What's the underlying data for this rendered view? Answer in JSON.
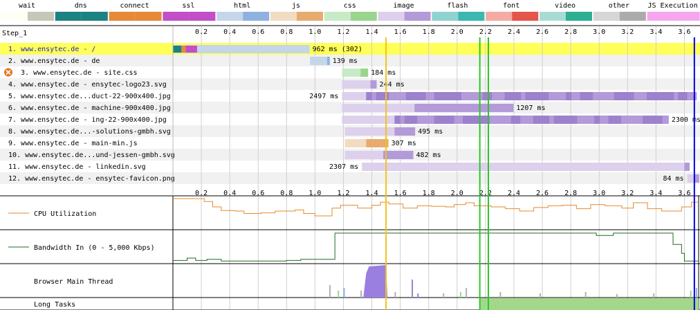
{
  "legend": [
    {
      "label": "wait",
      "colors": [
        "#fefef4",
        "#c7c7b8"
      ]
    },
    {
      "label": "dns",
      "colors": [
        "#1c8282",
        "#1c8282"
      ]
    },
    {
      "label": "connect",
      "colors": [
        "#e68a3a",
        "#e68a3a"
      ]
    },
    {
      "label": "ssl",
      "colors": [
        "#c24ec8",
        "#c24ec8"
      ]
    },
    {
      "label": "html",
      "colors": [
        "#c5d5ea",
        "#8fb1e0"
      ]
    },
    {
      "label": "js",
      "colors": [
        "#f2dcc1",
        "#e8ab6e"
      ]
    },
    {
      "label": "css",
      "colors": [
        "#c9eac7",
        "#9ad58e"
      ]
    },
    {
      "label": "image",
      "colors": [
        "#ddd0ec",
        "#b39ad9"
      ]
    },
    {
      "label": "flash",
      "colors": [
        "#8fd2d0",
        "#3cb7b2"
      ]
    },
    {
      "label": "font",
      "colors": [
        "#f5aaa4",
        "#e4554a"
      ]
    },
    {
      "label": "video",
      "colors": [
        "#a8dcd3",
        "#2eae93"
      ]
    },
    {
      "label": "other",
      "colors": [
        "#d6d6d6",
        "#ababab"
      ]
    },
    {
      "label": "JS Execution",
      "colors": [
        "#f6a6ef",
        "#f6a6ef"
      ]
    }
  ],
  "step_label": "Step_1",
  "chart_data": {
    "type": "waterfall",
    "x_unit": "s",
    "xlim": [
      0,
      3.7
    ],
    "ticks": [
      "0.2",
      "0.4",
      "0.6",
      "0.8",
      "1.0",
      "1.2",
      "1.4",
      "1.6",
      "1.8",
      "2.0",
      "2.2",
      "2.4",
      "2.6",
      "2.8",
      "3.0",
      "3.2",
      "3.4",
      "3.6"
    ],
    "rows": [
      {
        "label": "1. www.ensytec.de - /",
        "type": "html",
        "start": 0.0,
        "ttfb": 0.962,
        "end": 0.962,
        "duration_label": "962 ms (302)",
        "highlight": true,
        "link_color": "#2222cc",
        "pre": [
          {
            "type": "dns",
            "s": 0.0,
            "e": 0.06
          },
          {
            "type": "connect",
            "s": 0.06,
            "e": 0.09
          },
          {
            "type": "ssl",
            "s": 0.09,
            "e": 0.17
          }
        ]
      },
      {
        "label": "2. www.ensytec.de - de",
        "type": "html",
        "start": 0.965,
        "ttfb": 1.085,
        "end": 1.104,
        "duration_label": "139 ms"
      },
      {
        "label": "3. www.ensytec.de - site.css",
        "type": "css",
        "start": 1.19,
        "ttfb": 1.32,
        "end": 1.374,
        "duration_label": "184 ms",
        "error": true
      },
      {
        "label": "4. www.ensytec.de - ensytec-logo23.svg",
        "type": "image",
        "start": 1.19,
        "ttfb": 1.39,
        "end": 1.434,
        "duration_label": "244 ms"
      },
      {
        "label": "5. www.ensytec.de...duct-22-900x400.jpg",
        "type": "image",
        "start": 1.19,
        "ttfb": 1.36,
        "end": 3.687,
        "duration_label": "2497 ms",
        "label_left": true
      },
      {
        "label": "6. www.ensytec.de - machine-900x400.jpg",
        "type": "image",
        "start": 1.19,
        "ttfb": 1.7,
        "end": 2.397,
        "duration_label": "1207 ms"
      },
      {
        "label": "7. www.ensytec.de - ing-22-900x400.jpg",
        "type": "image",
        "start": 1.19,
        "ttfb": 1.56,
        "end": 3.49,
        "duration_label": "2300 ms"
      },
      {
        "label": "8. www.ensytec.de...-solutions-gmbh.svg",
        "type": "image",
        "start": 1.21,
        "ttfb": 1.56,
        "end": 1.705,
        "duration_label": "495 ms"
      },
      {
        "label": "9. www.ensytec.de - main-min.js",
        "type": "js",
        "start": 1.21,
        "ttfb": 1.36,
        "end": 1.517,
        "duration_label": "307 ms"
      },
      {
        "label": "10. www.ensytec.de...und-jessen-gmbh.svg",
        "type": "image",
        "start": 1.21,
        "ttfb": 1.48,
        "end": 1.692,
        "duration_label": "482 ms"
      },
      {
        "label": "11. www.ensytec.de - linkedin.svg",
        "type": "image",
        "start": 1.33,
        "ttfb": 3.6,
        "end": 3.637,
        "duration_label": "2307 ms",
        "label_left": true
      },
      {
        "label": "12. www.ensytec.de - ensytec-favicon.png",
        "type": "image",
        "start": 3.62,
        "ttfb": 3.67,
        "end": 3.704,
        "duration_label": "84 ms",
        "label_left": true
      }
    ],
    "markers": [
      {
        "name": "start-render",
        "t": 1.5,
        "color": "#f2c21a"
      },
      {
        "name": "dom-content-loaded-1",
        "t": 2.16,
        "color": "#28c828"
      },
      {
        "name": "dom-content-loaded-2",
        "t": 2.22,
        "color": "#28c828"
      },
      {
        "name": "on-load",
        "t": 3.67,
        "color": "#0000dd"
      }
    ],
    "cpu": {
      "label": "CPU Utilization",
      "color": "#e68a2c",
      "points": [
        [
          0,
          100
        ],
        [
          0.22,
          90
        ],
        [
          0.28,
          72
        ],
        [
          0.34,
          60
        ],
        [
          0.44,
          58
        ],
        [
          0.5,
          50
        ],
        [
          0.62,
          52
        ],
        [
          0.72,
          58
        ],
        [
          0.86,
          62
        ],
        [
          0.92,
          50
        ],
        [
          1.0,
          42
        ],
        [
          1.12,
          68
        ],
        [
          1.18,
          78
        ],
        [
          1.3,
          68
        ],
        [
          1.4,
          78
        ],
        [
          1.46,
          88
        ],
        [
          1.52,
          82
        ],
        [
          1.62,
          68
        ],
        [
          1.72,
          76
        ],
        [
          1.82,
          74
        ],
        [
          1.92,
          72
        ],
        [
          1.98,
          80
        ],
        [
          2.06,
          86
        ],
        [
          2.12,
          76
        ],
        [
          2.24,
          72
        ],
        [
          2.34,
          66
        ],
        [
          2.44,
          58
        ],
        [
          2.54,
          70
        ],
        [
          2.64,
          76
        ],
        [
          2.74,
          78
        ],
        [
          2.84,
          66
        ],
        [
          2.94,
          80
        ],
        [
          3.04,
          76
        ],
        [
          3.16,
          68
        ],
        [
          3.24,
          86
        ],
        [
          3.34,
          66
        ],
        [
          3.44,
          58
        ],
        [
          3.58,
          72
        ],
        [
          3.65,
          88
        ],
        [
          3.7,
          88
        ]
      ]
    },
    "bandwidth": {
      "label": "Bandwidth In (0 - 5,000 Kbps)",
      "color": "#1e6b1e",
      "points": [
        [
          0,
          6
        ],
        [
          0.1,
          14
        ],
        [
          0.16,
          6
        ],
        [
          0.24,
          10
        ],
        [
          0.34,
          4
        ],
        [
          0.62,
          4
        ],
        [
          0.8,
          6
        ],
        [
          0.9,
          10
        ],
        [
          1.0,
          10
        ],
        [
          1.14,
          98
        ],
        [
          1.5,
          98
        ],
        [
          2.96,
          98
        ],
        [
          2.98,
          90
        ],
        [
          3.04,
          90
        ],
        [
          3.1,
          98
        ],
        [
          3.48,
          98
        ],
        [
          3.52,
          60
        ],
        [
          3.58,
          30
        ],
        [
          3.6,
          4
        ],
        [
          3.7,
          4
        ]
      ]
    },
    "main_thread": {
      "label": "Browser Main Thread"
    },
    "long_tasks": {
      "label": "Long Tasks",
      "color": "#a3d88a",
      "ranges": [
        [
          2.16,
          3.7
        ]
      ]
    }
  }
}
